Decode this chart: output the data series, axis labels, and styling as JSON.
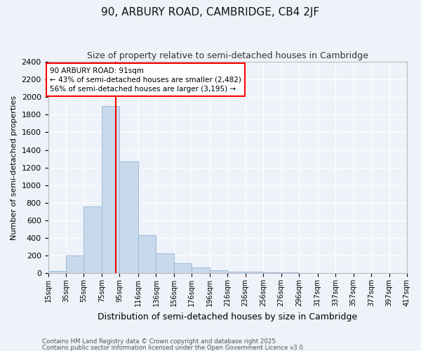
{
  "title": "90, ARBURY ROAD, CAMBRIDGE, CB4 2JF",
  "subtitle": "Size of property relative to semi-detached houses in Cambridge",
  "xlabel": "Distribution of semi-detached houses by size in Cambridge",
  "ylabel": "Number of semi-detached properties",
  "bar_color": "#c8d9ec",
  "bar_edgecolor": "#9bbbd8",
  "background_color": "#eef2f9",
  "grid_color": "#ffffff",
  "vline_x": 91,
  "vline_color": "red",
  "annotation_text": "90 ARBURY ROAD: 91sqm\n← 43% of semi-detached houses are smaller (2,482)\n56% of semi-detached houses are larger (3,195) →",
  "footer1": "Contains HM Land Registry data © Crown copyright and database right 2025.",
  "footer2": "Contains public sector information licensed under the Open Government Licence v3.0.",
  "bins": [
    15,
    35,
    55,
    75,
    95,
    116,
    136,
    156,
    176,
    196,
    216,
    236,
    256,
    276,
    296,
    317,
    337,
    357,
    377,
    397,
    417
  ],
  "counts": [
    25,
    200,
    760,
    1900,
    1270,
    430,
    225,
    110,
    65,
    35,
    20,
    15,
    10,
    8,
    5,
    3,
    2,
    1,
    1,
    0
  ],
  "tick_labels": [
    "15sqm",
    "35sqm",
    "55sqm",
    "75sqm",
    "95sqm",
    "116sqm",
    "136sqm",
    "156sqm",
    "176sqm",
    "196sqm",
    "216sqm",
    "236sqm",
    "256sqm",
    "276sqm",
    "296sqm",
    "317sqm",
    "337sqm",
    "357sqm",
    "377sqm",
    "397sqm",
    "417sqm"
  ],
  "ylim": [
    0,
    2400
  ],
  "yticks": [
    0,
    200,
    400,
    600,
    800,
    1000,
    1200,
    1400,
    1600,
    1800,
    2000,
    2200,
    2400
  ],
  "title_fontsize": 11,
  "subtitle_fontsize": 9
}
